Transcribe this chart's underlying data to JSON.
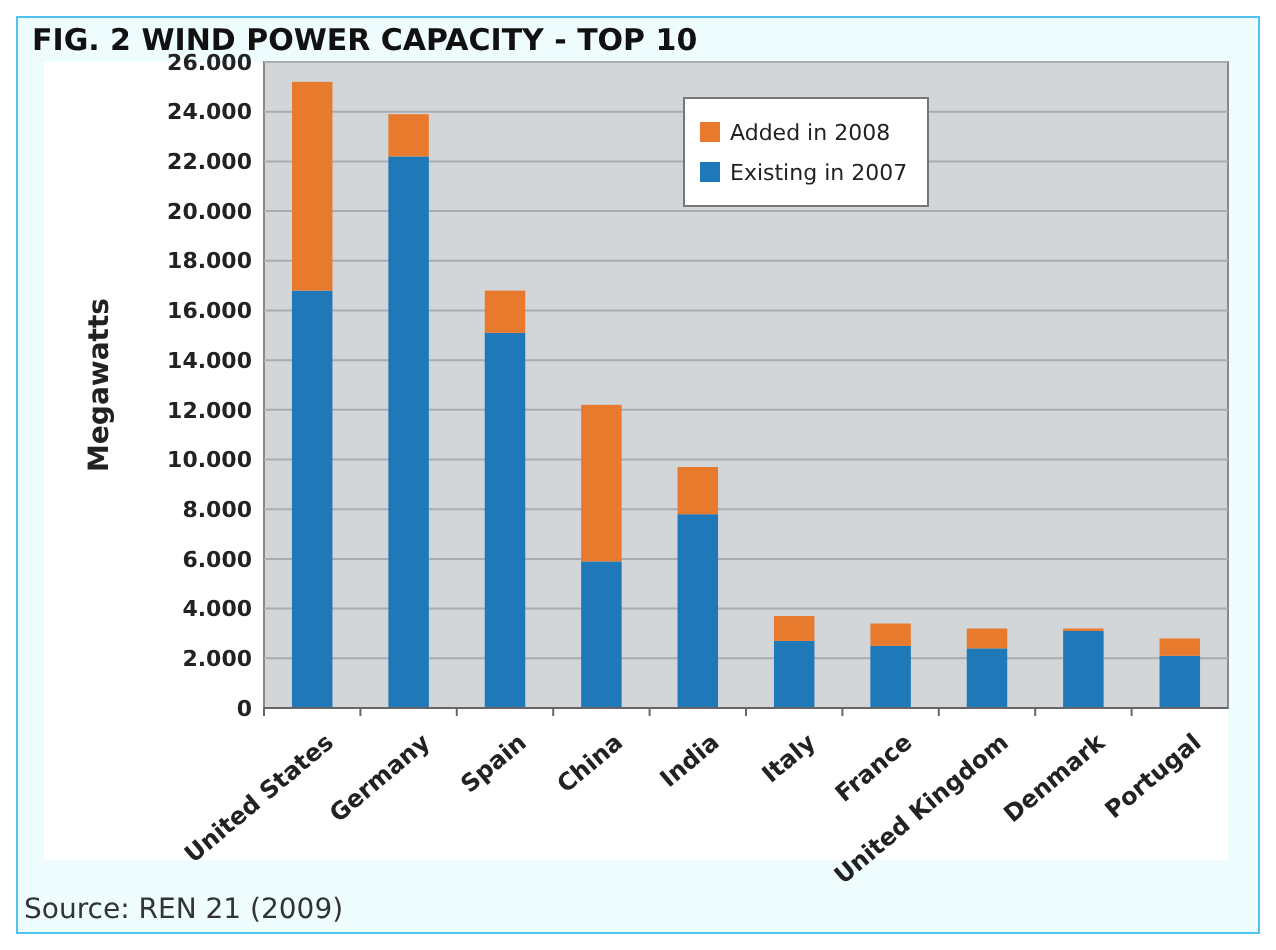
{
  "chart_data": {
    "type": "bar",
    "title": "FIG. 2 WIND POWER CAPACITY -  TOP 10",
    "ylabel": "Megawatts",
    "annotations": [
      "Source: REN 21 (2009)"
    ],
    "categories": [
      "United States",
      "Germany",
      "Spain",
      "China",
      "India",
      "Italy",
      "France",
      "United Kingdom",
      "Denmark",
      "Portugal"
    ],
    "stacked": true,
    "legend": "top right",
    "grid": "y",
    "ylim": [
      0,
      26000
    ],
    "yticks": [
      0,
      {
        "value": 2000,
        "label": "2.000"
      },
      {
        "value": 4000,
        "label": "4.000"
      },
      {
        "value": 6000,
        "label": "6.000"
      },
      {
        "value": 8000,
        "label": "8.000"
      },
      {
        "value": 10000,
        "label": "10.000"
      },
      {
        "value": 12000,
        "label": "12.000"
      },
      {
        "value": 14000,
        "label": "14.000"
      },
      {
        "value": 16000,
        "label": "16.000"
      },
      {
        "value": 18000,
        "label": "18.000"
      },
      {
        "value": 20000,
        "label": "20.000"
      },
      {
        "value": 22000,
        "label": "22.000"
      },
      {
        "value": 24000,
        "label": "24.000"
      },
      {
        "value": 26000,
        "label": "26.000"
      }
    ],
    "series": [
      {
        "name": "Existing in 2007",
        "color": "#1f78b8",
        "values": [
          16800,
          22200,
          15100,
          5900,
          7800,
          2700,
          2500,
          2400,
          3100,
          2100
        ]
      },
      {
        "name": "Added in 2008",
        "color": "#e87a2e",
        "values": [
          8400,
          1700,
          1700,
          6300,
          1900,
          1000,
          900,
          800,
          100,
          700
        ]
      }
    ]
  }
}
